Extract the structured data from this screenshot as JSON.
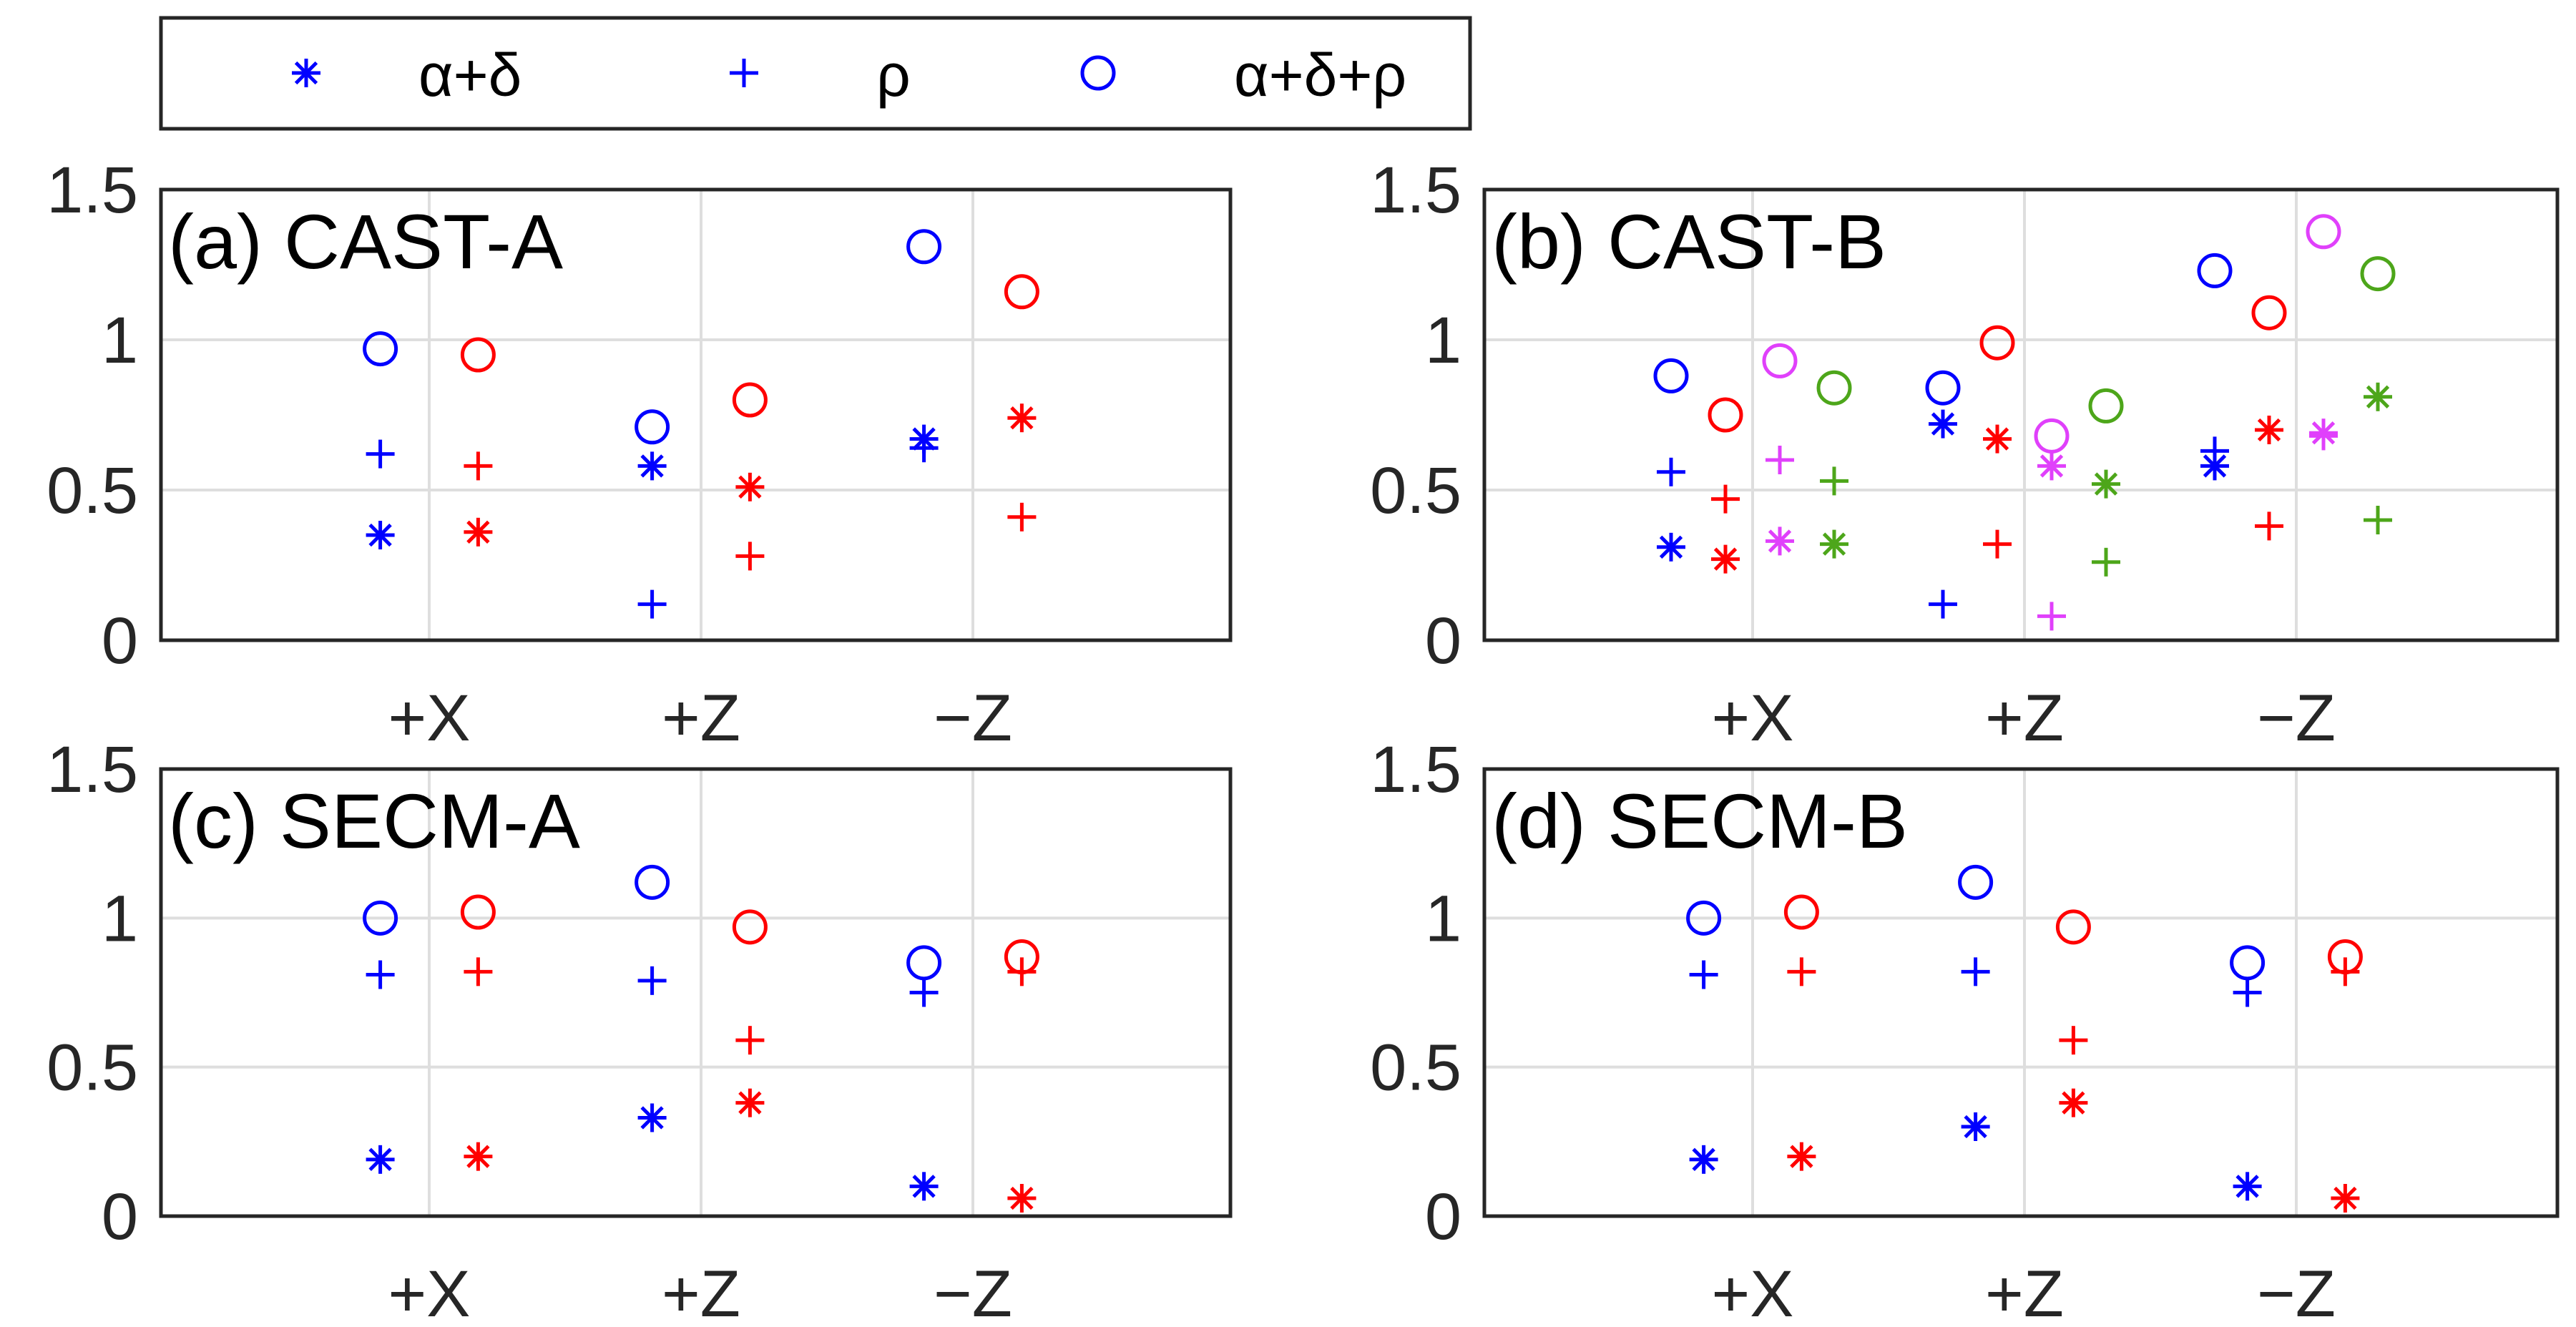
{
  "legend": {
    "entries": [
      {
        "label": "α+δ",
        "marker": "star"
      },
      {
        "label": "ρ",
        "marker": "plus"
      },
      {
        "label": "α+δ+ρ",
        "marker": "circle"
      }
    ],
    "color": "#0000ff"
  },
  "colors": {
    "blue": "#0000ff",
    "red": "#ff0000",
    "magenta": "#e040fb",
    "green": "#4da61a"
  },
  "chart_data": [
    {
      "type": "scatter",
      "title": "(a) CAST-A",
      "categories": [
        "+X",
        "+Z",
        "−Z"
      ],
      "ylim": [
        0,
        1.5
      ],
      "yticks": [
        "0",
        "0.5",
        "1",
        "1.5"
      ],
      "grid": true,
      "series": [
        {
          "name": "blue",
          "color": "blue",
          "offset": -0.18,
          "star": [
            0.35,
            0.58,
            0.67
          ],
          "plus": [
            0.62,
            0.12,
            0.64
          ],
          "circle": [
            0.97,
            0.71,
            1.31
          ]
        },
        {
          "name": "red",
          "color": "red",
          "offset": 0.18,
          "star": [
            0.36,
            0.51,
            0.74
          ],
          "plus": [
            0.58,
            0.28,
            0.41
          ],
          "circle": [
            0.95,
            0.8,
            1.16
          ]
        }
      ]
    },
    {
      "type": "scatter",
      "title": "(b) CAST-B",
      "categories": [
        "+X",
        "+Z",
        "−Z"
      ],
      "ylim": [
        0,
        1.5
      ],
      "yticks": [
        "0",
        "0.5",
        "1",
        "1.5"
      ],
      "grid": true,
      "series": [
        {
          "name": "blue",
          "color": "blue",
          "offset": -0.3,
          "star": [
            0.31,
            0.72,
            0.58
          ],
          "plus": [
            0.56,
            0.12,
            0.63
          ],
          "circle": [
            0.88,
            0.84,
            1.23
          ]
        },
        {
          "name": "red",
          "color": "red",
          "offset": -0.1,
          "star": [
            0.27,
            0.67,
            0.7
          ],
          "plus": [
            0.47,
            0.32,
            0.38
          ],
          "circle": [
            0.75,
            0.99,
            1.09
          ]
        },
        {
          "name": "magenta",
          "color": "magenta",
          "offset": 0.1,
          "star": [
            0.33,
            0.58,
            0.69
          ],
          "plus": [
            0.6,
            0.08,
            0.68
          ],
          "circle": [
            0.93,
            0.68,
            1.36
          ]
        },
        {
          "name": "green",
          "color": "green",
          "offset": 0.3,
          "star": [
            0.32,
            0.52,
            0.81
          ],
          "plus": [
            0.53,
            0.26,
            0.4
          ],
          "circle": [
            0.84,
            0.78,
            1.22
          ]
        }
      ]
    },
    {
      "type": "scatter",
      "title": "(c) SECM-A",
      "categories": [
        "+X",
        "+Z",
        "−Z"
      ],
      "ylim": [
        0,
        1.5
      ],
      "yticks": [
        "0",
        "0.5",
        "1",
        "1.5"
      ],
      "grid": true,
      "series": [
        {
          "name": "blue",
          "color": "blue",
          "offset": -0.18,
          "star": [
            0.19,
            0.33,
            0.1
          ],
          "plus": [
            0.81,
            0.79,
            0.75
          ],
          "circle": [
            1.0,
            1.12,
            0.85
          ]
        },
        {
          "name": "red",
          "color": "red",
          "offset": 0.18,
          "star": [
            0.2,
            0.38,
            0.06
          ],
          "plus": [
            0.82,
            0.59,
            0.82
          ],
          "circle": [
            1.02,
            0.97,
            0.87
          ]
        }
      ]
    },
    {
      "type": "scatter",
      "title": "(d) SECM-B",
      "categories": [
        "+X",
        "+Z",
        "−Z"
      ],
      "ylim": [
        0,
        1.5
      ],
      "yticks": [
        "0",
        "0.5",
        "1",
        "1.5"
      ],
      "grid": true,
      "series": [
        {
          "name": "blue",
          "color": "blue",
          "offset": -0.18,
          "star": [
            0.19,
            0.3,
            0.1
          ],
          "plus": [
            0.81,
            0.82,
            0.75
          ],
          "circle": [
            1.0,
            1.12,
            0.85
          ]
        },
        {
          "name": "red",
          "color": "red",
          "offset": 0.18,
          "star": [
            0.2,
            0.38,
            0.06
          ],
          "plus": [
            0.82,
            0.59,
            0.82
          ],
          "circle": [
            1.02,
            0.97,
            0.87
          ]
        }
      ]
    }
  ]
}
